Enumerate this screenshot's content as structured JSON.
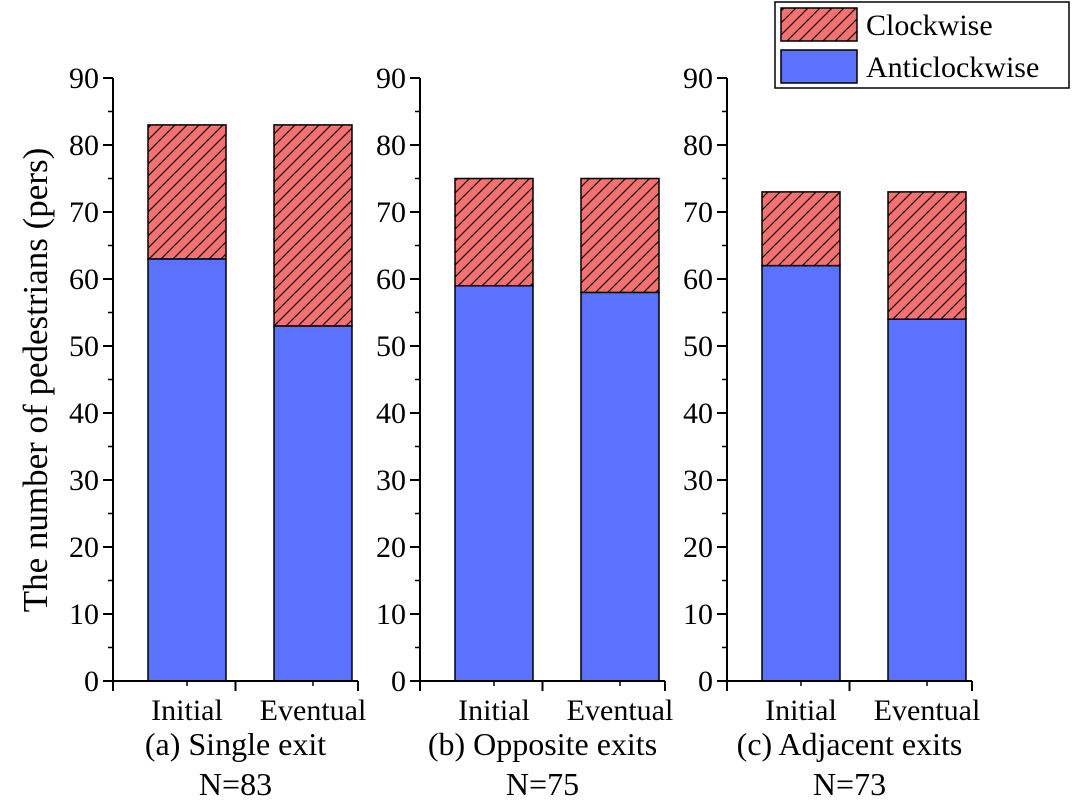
{
  "chart_data": [
    {
      "type": "bar",
      "stacked": true,
      "categories": [
        "Initial",
        "Eventual"
      ],
      "series": [
        {
          "name": "Anticlockwise",
          "values": [
            63,
            53
          ]
        },
        {
          "name": "Clockwise",
          "values": [
            20,
            30
          ]
        }
      ],
      "ylim": [
        0,
        90
      ],
      "ytick_step": 10,
      "ylabel": "The number of pedestrians (pers)",
      "subtitle": "(a) Single exit",
      "note": "N=83"
    },
    {
      "type": "bar",
      "stacked": true,
      "categories": [
        "Initial",
        "Eventual"
      ],
      "series": [
        {
          "name": "Anticlockwise",
          "values": [
            59,
            58
          ]
        },
        {
          "name": "Clockwise",
          "values": [
            16,
            17
          ]
        }
      ],
      "ylim": [
        0,
        90
      ],
      "ytick_step": 10,
      "subtitle": "(b) Opposite exits",
      "note": "N=75"
    },
    {
      "type": "bar",
      "stacked": true,
      "categories": [
        "Initial",
        "Eventual"
      ],
      "series": [
        {
          "name": "Anticlockwise",
          "values": [
            62,
            54
          ]
        },
        {
          "name": "Clockwise",
          "values": [
            11,
            19
          ]
        }
      ],
      "ylim": [
        0,
        90
      ],
      "ytick_step": 10,
      "subtitle": "(c) Adjacent exits",
      "note": "N=73"
    }
  ],
  "legend": {
    "position": "top-right",
    "items": [
      {
        "name": "Clockwise",
        "color": "#f87171",
        "pattern": "hatch"
      },
      {
        "name": "Anticlockwise",
        "color": "#5a72ff",
        "pattern": "solid"
      }
    ]
  },
  "colors": {
    "anticlockwise": "#5a72ff",
    "clockwise": "#f87171",
    "hatch": "#000000"
  }
}
